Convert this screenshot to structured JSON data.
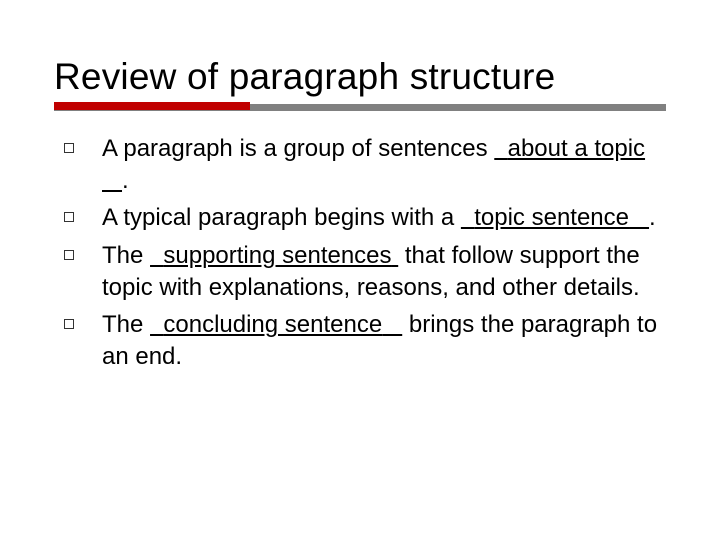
{
  "colors": {
    "background": "#ffffff",
    "text": "#000000",
    "accent_bar": "#c00000",
    "track_bar": "#808080",
    "bullet_border": "#333333"
  },
  "typography": {
    "title_fontsize": 37,
    "title_weight": 400,
    "body_fontsize": 24,
    "font_family": "Verdana"
  },
  "layout": {
    "slide_width": 720,
    "slide_height": 540,
    "accent_bar_width": 196,
    "accent_bar_height": 8,
    "track_bar_height": 7,
    "bullet_marker_size": 10,
    "bullet_indent": 44
  },
  "title": "Review of paragraph structure",
  "bullets": [
    {
      "pre": "A paragraph is a group of sentences ",
      "pad_left": "  ",
      "blank": "about a topic",
      "pad_right": "   ",
      "post": "."
    },
    {
      "pre": "A typical paragraph begins with a ",
      "pad_left": "  ",
      "blank": "topic sentence",
      "pad_right": "   ",
      "post": "."
    },
    {
      "pre": "The ",
      "pad_left": "  ",
      "blank": "supporting sentences",
      "pad_right": " ",
      "post": " that follow support the topic with explanations, reasons, and other details."
    },
    {
      "pre": "The ",
      "pad_left": "  ",
      "blank": "concluding sentence",
      "pad_right": "   ",
      "post": " brings the paragraph to an end."
    }
  ]
}
